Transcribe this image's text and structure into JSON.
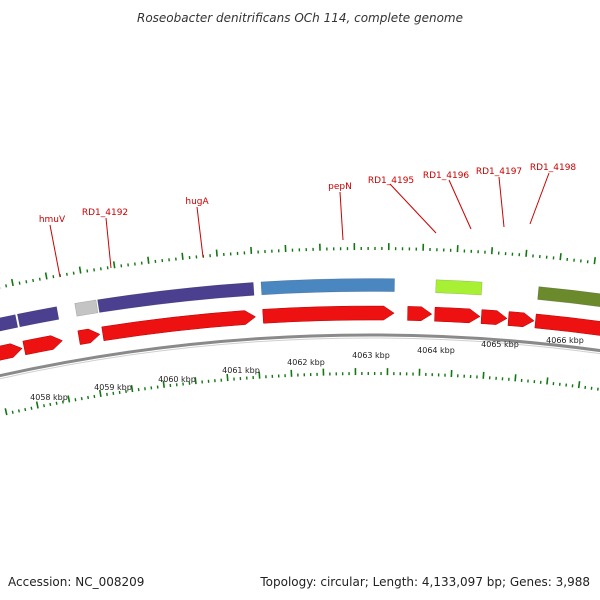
{
  "header": {
    "title": "Roseobacter denitrificans OCh 114, complete genome"
  },
  "footer": {
    "accession": "Accession: NC_008209",
    "summary": "Topology: circular; Length: 4,133,097 bp; Genes: 3,988"
  },
  "colors": {
    "cds_red": "#ee1111",
    "purple": "#4b3f8f",
    "steel_blue": "#4a87c0",
    "light_gray": "#c4c4c4",
    "lime": "#a8f034",
    "olive": "#6a8a2c",
    "tick_green": "#117711",
    "backbone": "#8a8a8a",
    "label_red": "#cc0000"
  },
  "gene_labels": [
    "hmuV",
    "RD1_4192",
    "hugA",
    "pepN",
    "RD1_4195",
    "RD1_4196",
    "RD1_4197",
    "RD1_4198"
  ],
  "kbp_labels": [
    "4058 kbp",
    "4059 kbp",
    "4060 kbp",
    "4061 kbp",
    "4062 kbp",
    "4063 kbp",
    "4064 kbp",
    "4065 kbp",
    "4066 kbp"
  ]
}
